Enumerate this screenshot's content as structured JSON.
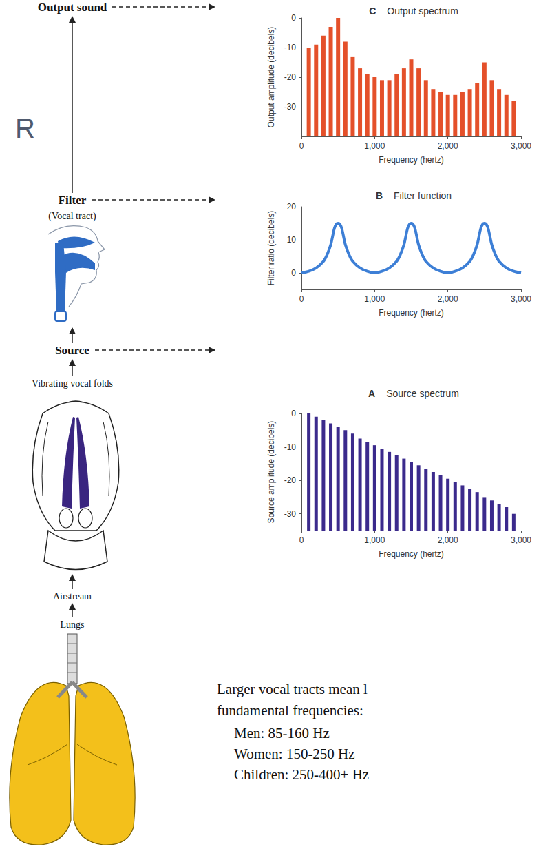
{
  "diagram": {
    "fragment": "R",
    "stages": [
      {
        "label": "Output sound"
      },
      {
        "label": "Filter",
        "sublabel": "(Vocal tract)"
      },
      {
        "label": "Source"
      },
      {
        "label": "Vibrating vocal folds"
      },
      {
        "label": "Airstream"
      },
      {
        "label": "Lungs"
      }
    ],
    "text_block": {
      "lines": [
        "Larger vocal tracts mean l",
        "fundamental frequencies:"
      ],
      "items": [
        "Men: 85-160 Hz",
        "Women: 150-250 Hz",
        "Children: 250-400+ Hz"
      ]
    }
  },
  "chart_data": [
    {
      "type": "bar",
      "letter": "C",
      "title": "Output spectrum",
      "x_label": "Frequency (hertz)",
      "y_label": "Output amplitude (decibels)",
      "x": [
        100,
        200,
        300,
        400,
        500,
        600,
        700,
        800,
        900,
        1000,
        1100,
        1200,
        1300,
        1400,
        1500,
        1600,
        1700,
        1800,
        1900,
        2000,
        2100,
        2200,
        2300,
        2400,
        2500,
        2600,
        2700,
        2800,
        2900
      ],
      "values": [
        -10,
        -9,
        -6,
        -3,
        0,
        -8,
        -13,
        -17,
        -19,
        -20,
        -21,
        -21,
        -19,
        -17,
        -14,
        -17,
        -21,
        -24,
        -25,
        -26,
        -26,
        -25,
        -24,
        -22,
        -15,
        -21,
        -24,
        -26,
        -28
      ],
      "color": "#e4502a",
      "xlim": [
        0,
        3000
      ],
      "xticks": [
        0,
        {
          "value": 1000,
          "label": "1,000"
        },
        {
          "value": 2000,
          "label": "2,000"
        },
        {
          "value": 3000,
          "label": "3,000"
        }
      ],
      "ylim": [
        -40,
        0
      ],
      "yticks": [
        -30,
        -20,
        -10,
        0
      ],
      "grid": false
    },
    {
      "type": "line",
      "letter": "B",
      "title": "Filter function",
      "x_label": "Frequency (hertz)",
      "y_label": "Filter ratio (decibels)",
      "x": [
        0,
        100,
        200,
        300,
        350,
        400,
        425,
        450,
        475,
        500,
        525,
        550,
        575,
        600,
        650,
        700,
        800,
        900,
        1000,
        1100,
        1200,
        1300,
        1350,
        1400,
        1425,
        1450,
        1475,
        1500,
        1525,
        1550,
        1575,
        1600,
        1650,
        1700,
        1800,
        1900,
        2000,
        2100,
        2200,
        2300,
        2350,
        2400,
        2425,
        2450,
        2475,
        2500,
        2525,
        2550,
        2575,
        2600,
        2650,
        2700,
        2800,
        2900,
        3000
      ],
      "values": [
        0,
        0.5,
        1.5,
        3.5,
        5.5,
        8.5,
        11,
        13.5,
        14.7,
        15,
        14.7,
        13.5,
        11,
        8.5,
        5.5,
        3.5,
        1.5,
        0.5,
        0,
        0.5,
        1.5,
        3.5,
        5.5,
        8.5,
        11,
        13.5,
        14.7,
        15,
        14.7,
        13.5,
        11,
        8.5,
        5.5,
        3.5,
        1.5,
        0.5,
        0,
        0.5,
        1.5,
        3.5,
        5.5,
        8.5,
        11,
        13.5,
        14.7,
        15,
        14.7,
        13.5,
        11,
        8.5,
        5.5,
        3.5,
        1.5,
        0.5,
        0
      ],
      "color": "#3d7fd6",
      "xlim": [
        0,
        3000
      ],
      "xticks": [
        0,
        {
          "value": 1000,
          "label": "1,000"
        },
        {
          "value": 2000,
          "label": "2,000"
        },
        {
          "value": 3000,
          "label": "3,000"
        }
      ],
      "ylim": [
        -5,
        20
      ],
      "yticks": [
        0,
        10,
        20
      ],
      "grid": false
    },
    {
      "type": "bar",
      "letter": "A",
      "title": "Source spectrum",
      "x_label": "Frequency (hertz)",
      "y_label": "Source amplitude (decibels)",
      "x": [
        100,
        200,
        300,
        400,
        500,
        600,
        700,
        800,
        900,
        1000,
        1100,
        1200,
        1300,
        1400,
        1500,
        1600,
        1700,
        1800,
        1900,
        2000,
        2100,
        2200,
        2300,
        2400,
        2500,
        2600,
        2700,
        2800,
        2900
      ],
      "values": [
        0,
        -1,
        -2,
        -3,
        -4,
        -5,
        -6,
        -7.5,
        -8.5,
        -9.5,
        -10.5,
        -11.5,
        -12.5,
        -13.5,
        -14.5,
        -15.5,
        -16.5,
        -17.5,
        -18.5,
        -19.5,
        -20.5,
        -21.5,
        -22.5,
        -23.5,
        -25,
        -26,
        -27,
        -28,
        -30
      ],
      "color": "#3b2a8c",
      "xlim": [
        0,
        3000
      ],
      "xticks": [
        0,
        {
          "value": 1000,
          "label": "1,000"
        },
        {
          "value": 2000,
          "label": "2,000"
        },
        {
          "value": 3000,
          "label": "3,000"
        }
      ],
      "ylim": [
        -35,
        0
      ],
      "yticks": [
        -30,
        -20,
        -10,
        0
      ],
      "grid": false
    }
  ]
}
